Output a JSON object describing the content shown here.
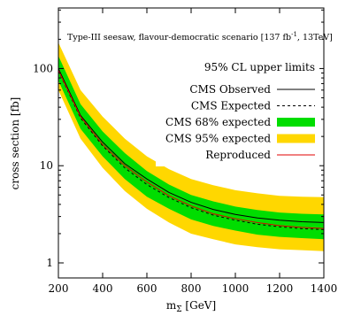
{
  "chart_data": {
    "type": "line",
    "title": "Type-III seesaw, flavour-democratic scenario",
    "title_lumi_base": "137 fb",
    "title_lumi_exp": "-1",
    "title_energy": ", 13TeV",
    "legend_heading": "95% CL upper limits",
    "xlabel_base": "m",
    "xlabel_sub": "Σ",
    "xlabel_unit": " [GeV]",
    "ylabel": "cross section [fb]",
    "x_scale": "linear",
    "y_scale": "log",
    "xlim": [
      200,
      1400
    ],
    "ylim": [
      0.7,
      420
    ],
    "x_ticks": [
      200,
      400,
      600,
      800,
      1000,
      1200,
      1400
    ],
    "x_tick_labels": [
      "200",
      "400",
      "600",
      "800",
      "1000",
      "1200",
      "1400"
    ],
    "y_ticks": [
      1,
      10,
      100
    ],
    "y_tick_labels": [
      "1",
      "10",
      "100"
    ],
    "legend_position": "top-right",
    "x": [
      200,
      300,
      400,
      500,
      600,
      700,
      800,
      900,
      1000,
      1100,
      1200,
      1300,
      1400
    ],
    "series": [
      {
        "name": "CMS 95% expected",
        "kind": "band",
        "color": "#ffd700",
        "low": [
          60,
          19,
          9.5,
          5.5,
          3.6,
          2.6,
          2.0,
          1.75,
          1.55,
          1.45,
          1.38,
          1.35,
          1.32
        ],
        "high": [
          185,
          60,
          32,
          19,
          12.5,
          9.2,
          7.3,
          6.3,
          5.6,
          5.2,
          4.9,
          4.8,
          4.75
        ]
      },
      {
        "name": "CMS 68% expected",
        "kind": "band",
        "color": "#00dd00",
        "low": [
          75,
          24,
          12.5,
          7.3,
          4.8,
          3.6,
          2.8,
          2.4,
          2.15,
          1.95,
          1.85,
          1.8,
          1.75
        ],
        "high": [
          135,
          43,
          22.5,
          13.5,
          8.8,
          6.4,
          5.0,
          4.3,
          3.8,
          3.5,
          3.3,
          3.2,
          3.15
        ]
      },
      {
        "name": "CMS Expected",
        "kind": "line",
        "color": "#000000",
        "dash": "3,3",
        "values": [
          95,
          31,
          16,
          9.5,
          6.4,
          4.7,
          3.7,
          3.1,
          2.75,
          2.5,
          2.35,
          2.25,
          2.2
        ]
      },
      {
        "name": "CMS Observed",
        "kind": "line",
        "color": "#000000",
        "values": [
          100,
          33,
          17.5,
          10.5,
          7.3,
          5.3,
          4.2,
          3.55,
          3.15,
          2.9,
          2.75,
          2.65,
          2.6
        ]
      },
      {
        "name": "Reproduced",
        "kind": "line",
        "color": "#e00000",
        "values": [
          96,
          32,
          16.5,
          10.0,
          6.8,
          4.9,
          3.85,
          3.2,
          2.85,
          2.6,
          2.42,
          2.32,
          2.26
        ]
      }
    ]
  }
}
